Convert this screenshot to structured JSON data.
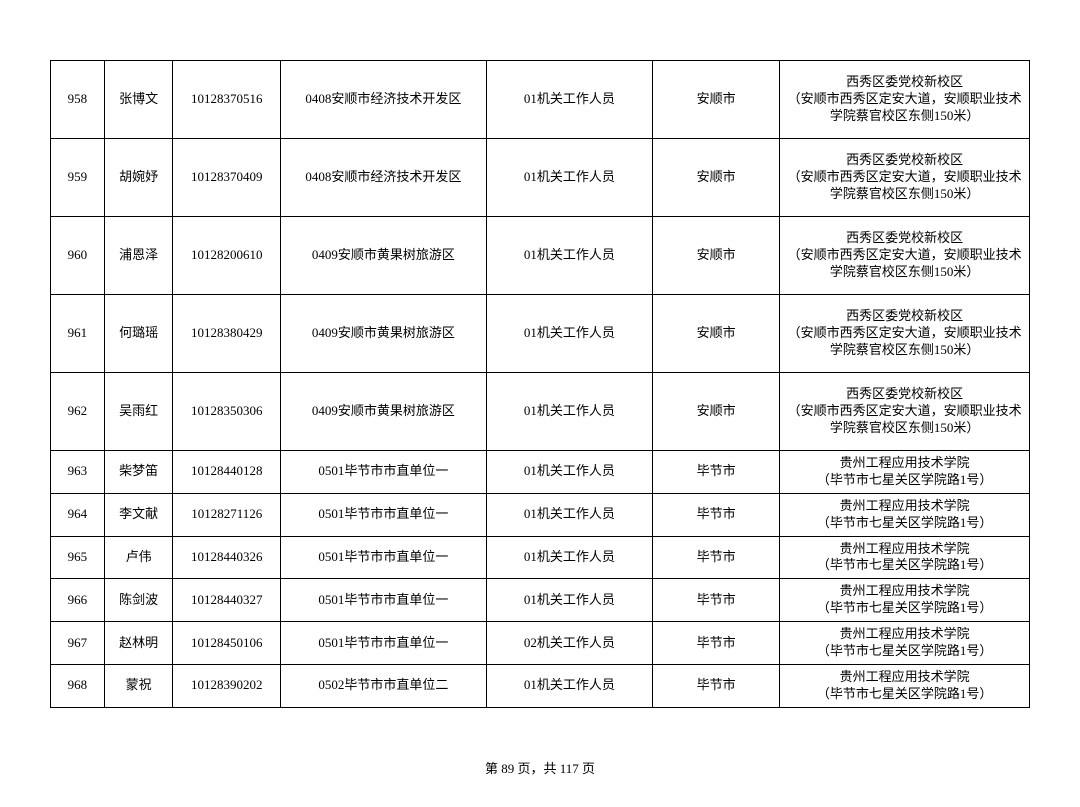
{
  "table": {
    "columns": [
      "idx",
      "name",
      "id",
      "unit",
      "position",
      "city",
      "location"
    ],
    "col_classes": [
      "col-idx",
      "col-name",
      "col-id",
      "col-unit",
      "col-pos",
      "col-city",
      "col-loc"
    ],
    "rows": [
      {
        "h": "tall",
        "idx": "958",
        "name": "张博文",
        "id": "10128370516",
        "unit": "0408安顺市经济技术开发区",
        "position": "01机关工作人员",
        "city": "安顺市",
        "location": "西秀区委党校新校区\n（安顺市西秀区定安大道，安顺职业技术学院蔡官校区东侧150米）"
      },
      {
        "h": "tall",
        "idx": "959",
        "name": "胡婉妤",
        "id": "10128370409",
        "unit": "0408安顺市经济技术开发区",
        "position": "01机关工作人员",
        "city": "安顺市",
        "location": "西秀区委党校新校区\n（安顺市西秀区定安大道，安顺职业技术学院蔡官校区东侧150米）"
      },
      {
        "h": "tall",
        "idx": "960",
        "name": "浦恩泽",
        "id": "10128200610",
        "unit": "0409安顺市黄果树旅游区",
        "position": "01机关工作人员",
        "city": "安顺市",
        "location": "西秀区委党校新校区\n（安顺市西秀区定安大道，安顺职业技术学院蔡官校区东侧150米）"
      },
      {
        "h": "tall",
        "idx": "961",
        "name": "何璐瑶",
        "id": "10128380429",
        "unit": "0409安顺市黄果树旅游区",
        "position": "01机关工作人员",
        "city": "安顺市",
        "location": "西秀区委党校新校区\n（安顺市西秀区定安大道，安顺职业技术学院蔡官校区东侧150米）"
      },
      {
        "h": "tall",
        "idx": "962",
        "name": "吴雨红",
        "id": "10128350306",
        "unit": "0409安顺市黄果树旅游区",
        "position": "01机关工作人员",
        "city": "安顺市",
        "location": "西秀区委党校新校区\n（安顺市西秀区定安大道，安顺职业技术学院蔡官校区东侧150米）"
      },
      {
        "h": "short",
        "idx": "963",
        "name": "柴梦笛",
        "id": "10128440128",
        "unit": "0501毕节市市直单位一",
        "position": "01机关工作人员",
        "city": "毕节市",
        "location": "贵州工程应用技术学院\n（毕节市七星关区学院路1号）"
      },
      {
        "h": "short",
        "idx": "964",
        "name": "李文献",
        "id": "10128271126",
        "unit": "0501毕节市市直单位一",
        "position": "01机关工作人员",
        "city": "毕节市",
        "location": "贵州工程应用技术学院\n（毕节市七星关区学院路1号）"
      },
      {
        "h": "short",
        "idx": "965",
        "name": "卢伟",
        "id": "10128440326",
        "unit": "0501毕节市市直单位一",
        "position": "01机关工作人员",
        "city": "毕节市",
        "location": "贵州工程应用技术学院\n（毕节市七星关区学院路1号）"
      },
      {
        "h": "short",
        "idx": "966",
        "name": "陈剑波",
        "id": "10128440327",
        "unit": "0501毕节市市直单位一",
        "position": "01机关工作人员",
        "city": "毕节市",
        "location": "贵州工程应用技术学院\n（毕节市七星关区学院路1号）"
      },
      {
        "h": "short",
        "idx": "967",
        "name": "赵林明",
        "id": "10128450106",
        "unit": "0501毕节市市直单位一",
        "position": "02机关工作人员",
        "city": "毕节市",
        "location": "贵州工程应用技术学院\n（毕节市七星关区学院路1号）"
      },
      {
        "h": "short",
        "idx": "968",
        "name": "蒙祝",
        "id": "10128390202",
        "unit": "0502毕节市市直单位二",
        "position": "01机关工作人员",
        "city": "毕节市",
        "location": "贵州工程应用技术学院\n（毕节市七星关区学院路1号）"
      }
    ]
  },
  "footer": "第 89 页，共 117 页"
}
